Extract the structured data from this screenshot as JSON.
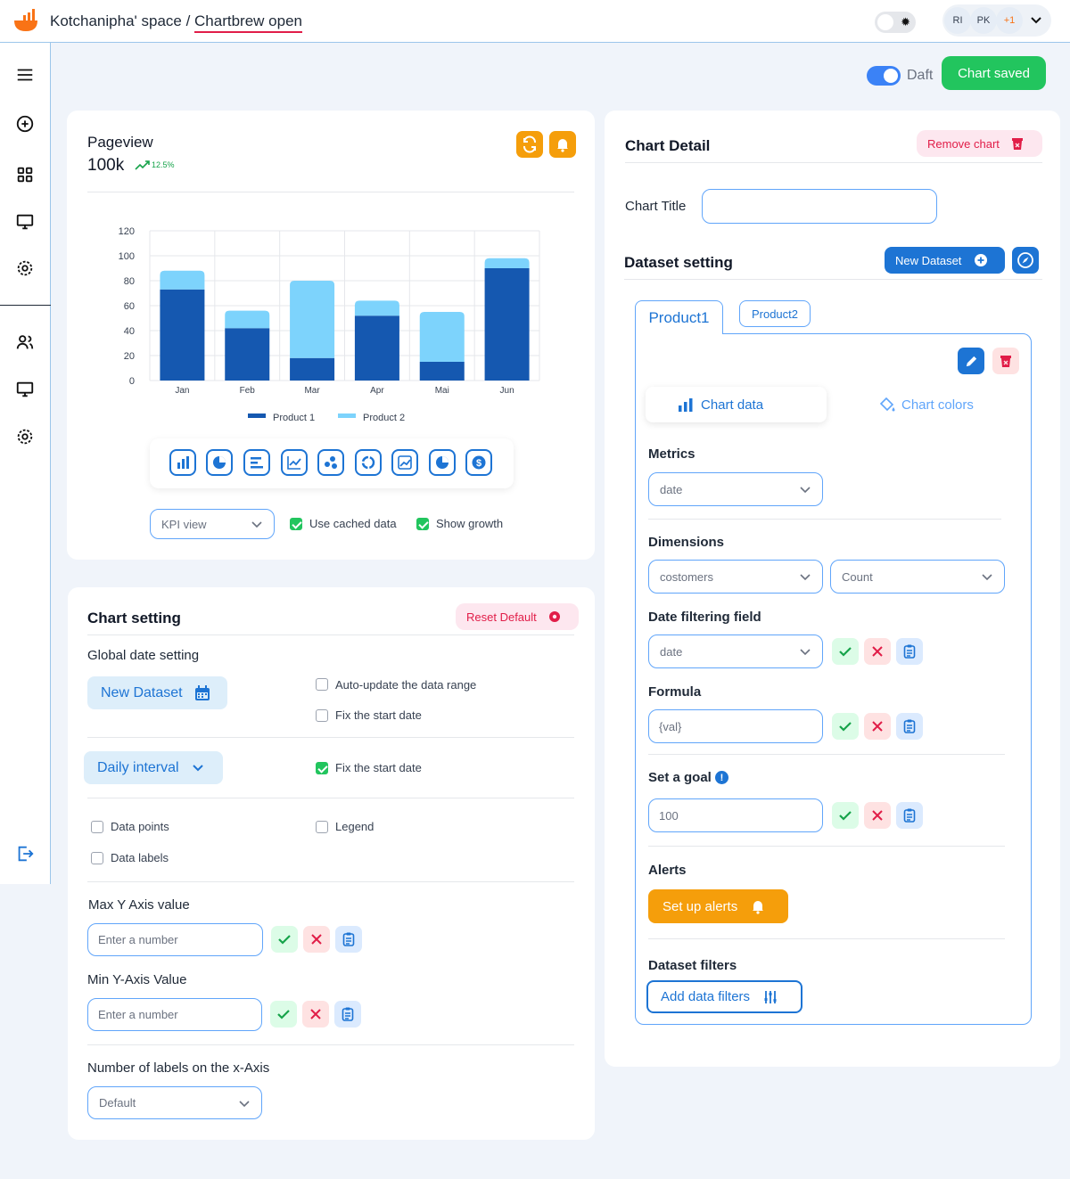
{
  "header": {
    "workspace": "Kotchanipha' space",
    "separator": " / ",
    "project": "Chartbrew open",
    "avatars": [
      "RI",
      "PK",
      "+1"
    ]
  },
  "toolbar": {
    "draft_label": "Daft",
    "saved_label": "Chart saved"
  },
  "kpi": {
    "title": "Pageview",
    "value": "100k",
    "growth": "12.5%"
  },
  "chart_data": {
    "type": "bar",
    "stacked": true,
    "categories": [
      "Jan",
      "Feb",
      "Mar",
      "Apr",
      "Mai",
      "Jun"
    ],
    "series": [
      {
        "name": "Product 1",
        "color": "#1558b0",
        "values": [
          73,
          42,
          18,
          52,
          15,
          90
        ]
      },
      {
        "name": "Product 2",
        "color": "#7dd3fc",
        "values": [
          15,
          14,
          62,
          12,
          40,
          8
        ]
      }
    ],
    "yticks": [
      120,
      100,
      80,
      60,
      40,
      20,
      0
    ],
    "ylim": [
      0,
      120
    ],
    "grid": true,
    "legend_position": "bottom"
  },
  "chart_types": [
    "bar-chart-icon",
    "pie-chart-icon",
    "horizontal-bar-icon",
    "line-chart-icon",
    "scatter-icon",
    "doughnut-icon",
    "area-chart-icon",
    "pie-chart-icon",
    "currency-icon"
  ],
  "chart_options": {
    "view_select": "KPI view",
    "cached_label": "Use cached data",
    "growth_label": "Show growth"
  },
  "chart_setting": {
    "title": "Chart setting",
    "reset_label": "Reset Default",
    "global_date": "Global date setting",
    "new_dataset": "New Dataset",
    "auto_update": "Auto-update the data range",
    "fix_start": "Fix the start date",
    "interval": "Daily interval",
    "fix_start2": "Fix the start date",
    "data_points": "Data points",
    "legend": "Legend",
    "data_labels": "Data labels",
    "max_y": "Max Y Axis value",
    "min_y": "Min Y-Axis Value",
    "number_placeholder": "Enter a number",
    "xlabels": "Number of labels on the x-Axis",
    "xlabels_value": "Default"
  },
  "detail": {
    "title": "Chart Detail",
    "remove_label": "Remove chart",
    "chart_title_label": "Chart Title",
    "dataset_setting": "Dataset setting",
    "new_dataset": "New Dataset",
    "tabs": [
      "Product1",
      "Product2"
    ],
    "chart_data_tab": "Chart data",
    "chart_colors_tab": "Chart colors",
    "metrics": "Metrics",
    "metrics_value": "date",
    "dimensions": "Dimensions",
    "dim1": "costomers",
    "dim2": "Count",
    "date_field": "Date filtering field",
    "date_value": "date",
    "formula": "Formula",
    "formula_value": "{val}",
    "goal": "Set a goal",
    "goal_value": "100",
    "alerts": "Alerts",
    "alerts_button": "Set up alerts",
    "filters": "Dataset filters",
    "filters_button": "Add data filters"
  }
}
